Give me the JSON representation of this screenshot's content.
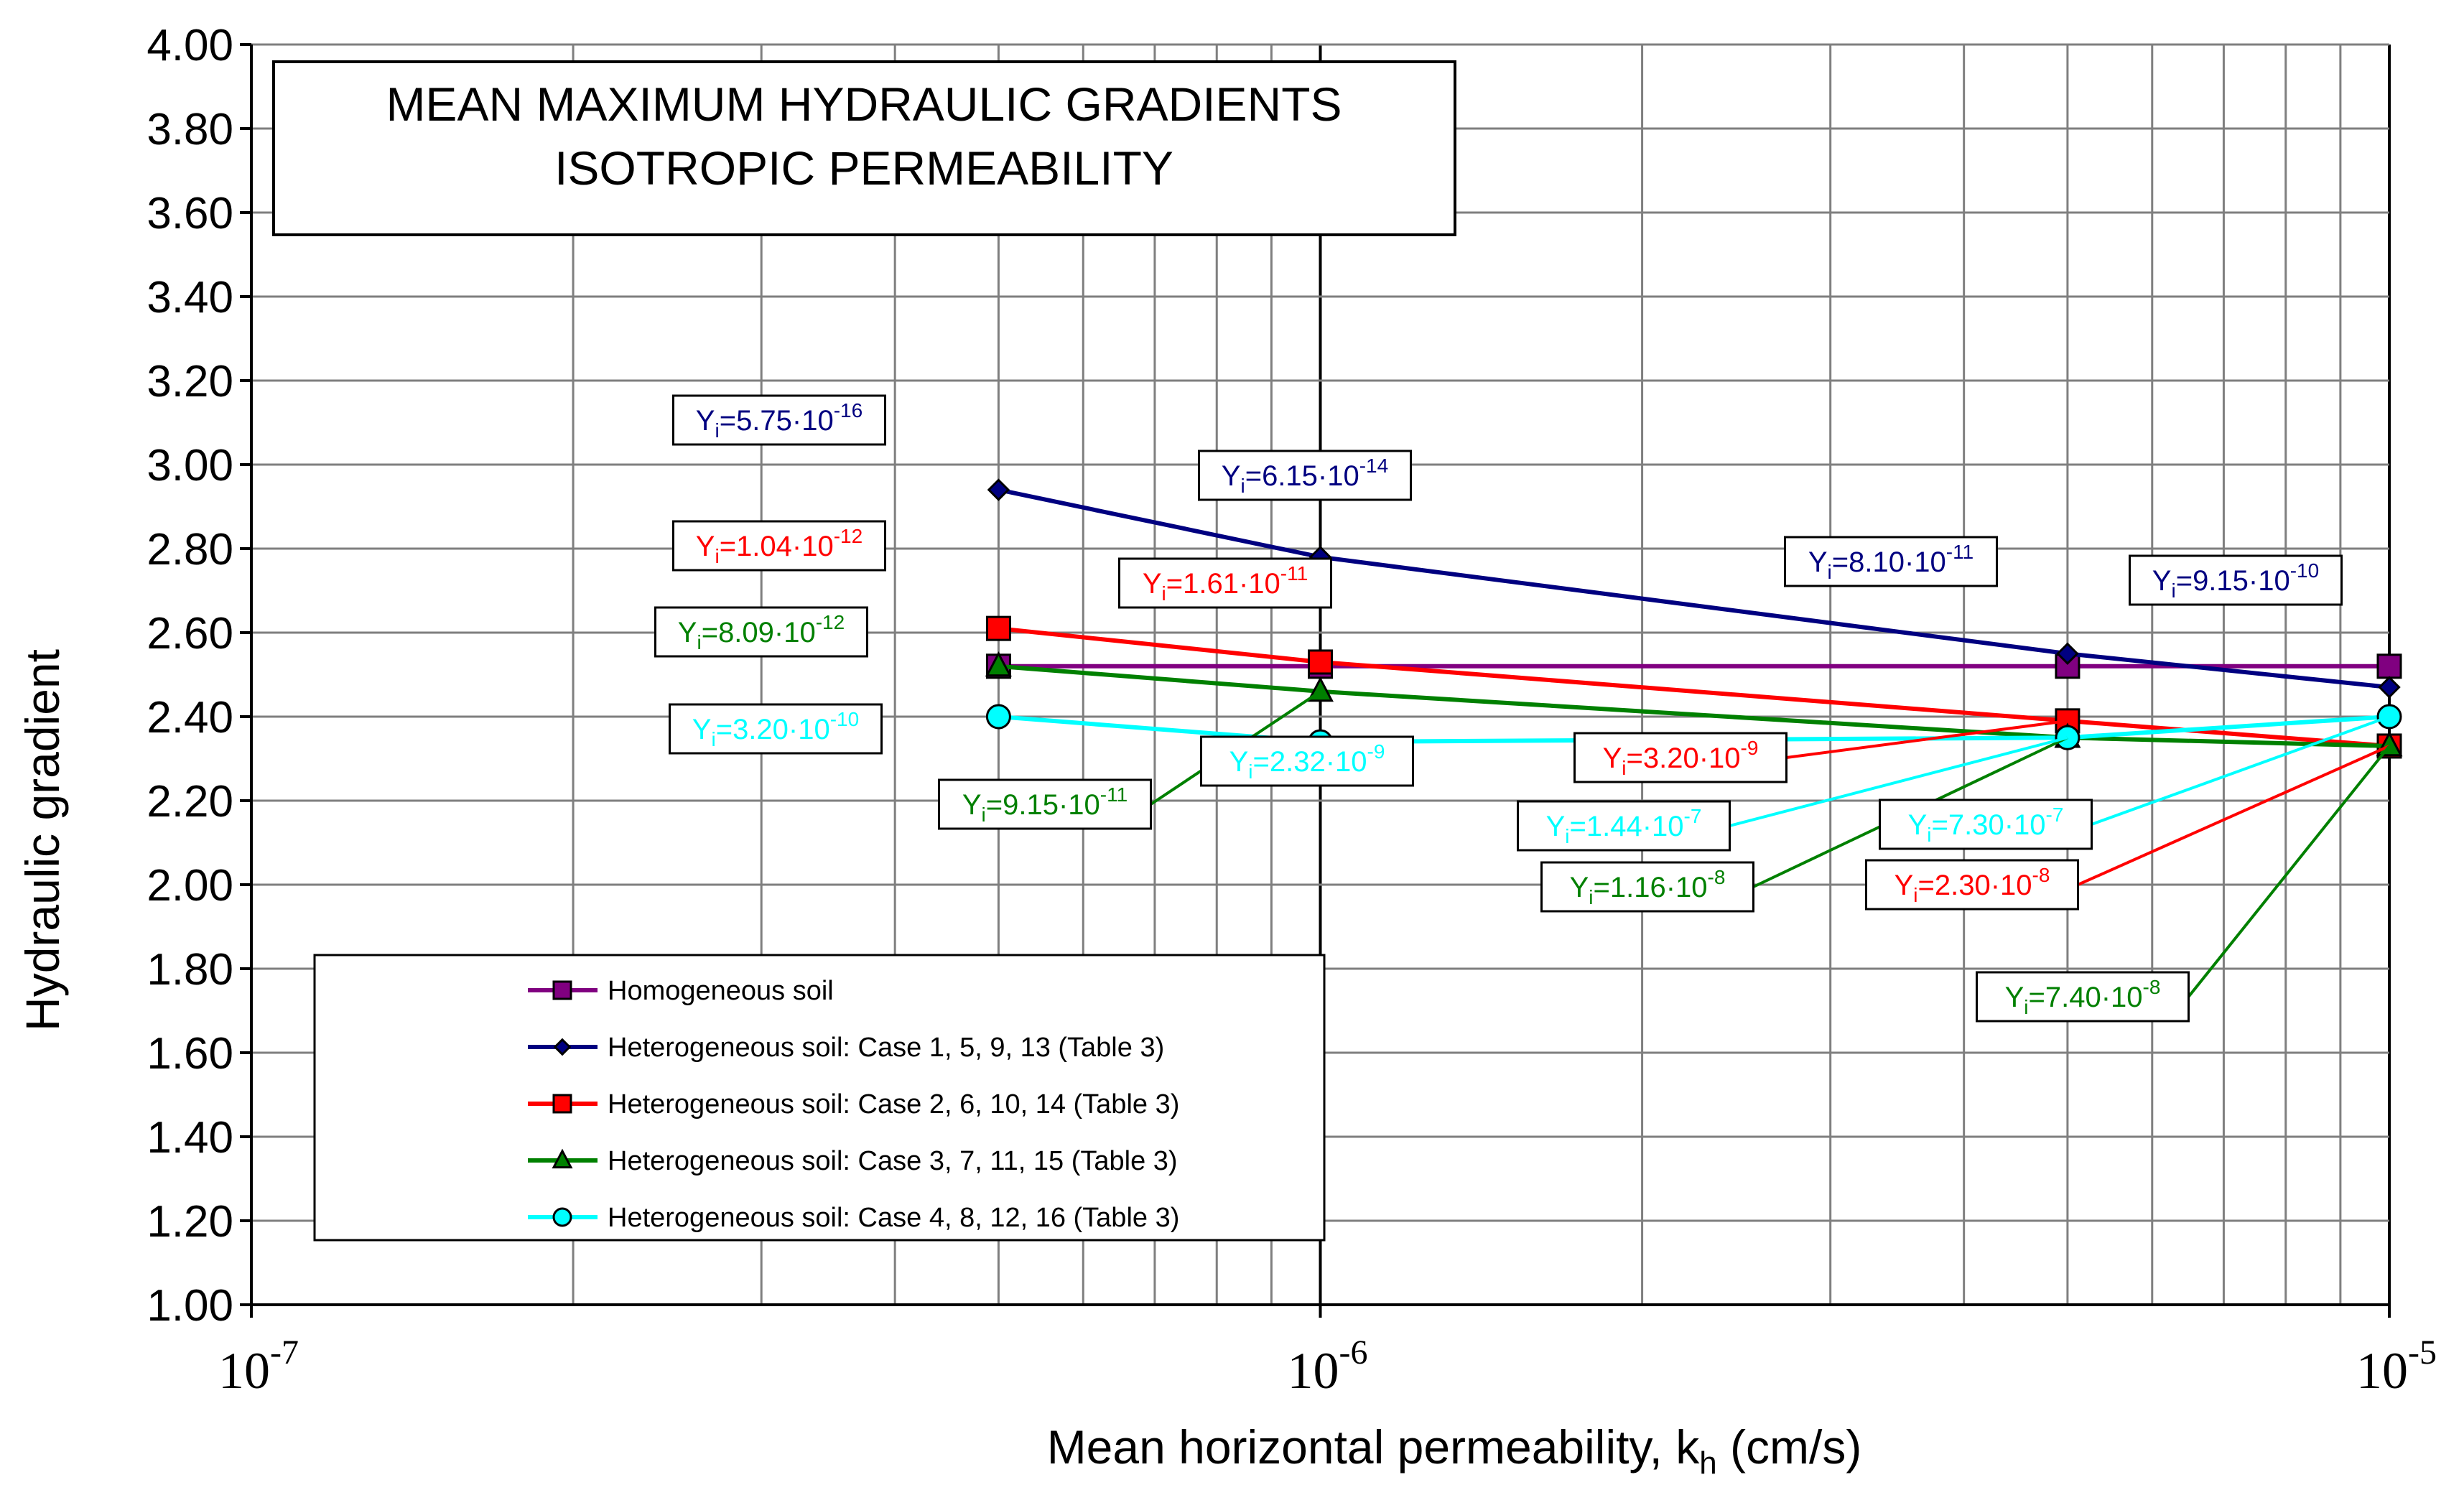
{
  "chart_data": {
    "type": "line",
    "title": [
      "MEAN MAXIMUM HYDRAULIC GRADIENTS",
      "ISOTROPIC PERMEABILITY"
    ],
    "xlabel": "Mean horizontal permeability, k",
    "xlabel_sub": "h",
    "xlabel_unit": " (cm/s)",
    "ylabel": "Hydraulic gradient",
    "x_scale": "log",
    "xlim": [
      1e-07,
      1e-05
    ],
    "ylim": [
      1.0,
      4.0
    ],
    "y_ticks": [
      "1.00",
      "1.20",
      "1.40",
      "1.60",
      "1.80",
      "2.00",
      "2.20",
      "2.40",
      "2.60",
      "2.80",
      "3.00",
      "3.20",
      "3.40",
      "3.60",
      "3.80",
      "4.00"
    ],
    "x_ticks": [
      {
        "value": 1e-07,
        "base": "10",
        "exp": "-7"
      },
      {
        "value": 1e-06,
        "base": "10",
        "exp": "-6"
      },
      {
        "value": 1e-05,
        "base": "10",
        "exp": "-5"
      }
    ],
    "grid": true,
    "legend_position": "bottom-left",
    "series": [
      {
        "name": "Homogeneous soil",
        "color": "#800080",
        "marker": "square",
        "x": [
          5e-07,
          1e-06,
          5e-06,
          1e-05
        ],
        "y": [
          2.52,
          2.52,
          2.52,
          2.52
        ]
      },
      {
        "name": "Heterogeneous soil: Case  1, 5, 9, 13 (Table 3)",
        "color": "#000080",
        "marker": "diamond",
        "x": [
          5e-07,
          1e-06,
          5e-06,
          1e-05
        ],
        "y": [
          2.94,
          2.78,
          2.55,
          2.47
        ]
      },
      {
        "name": "Heterogeneous soil: Case  2, 6, 10, 14 (Table 3)",
        "color": "#ff0000",
        "marker": "square",
        "x": [
          5e-07,
          1e-06,
          5e-06,
          1e-05
        ],
        "y": [
          2.61,
          2.53,
          2.39,
          2.33
        ]
      },
      {
        "name": "Heterogeneous soil: Case  3, 7, 11, 15 (Table 3)",
        "color": "#008000",
        "marker": "triangle",
        "x": [
          5e-07,
          1e-06,
          5e-06,
          1e-05
        ],
        "y": [
          2.52,
          2.46,
          2.35,
          2.33
        ]
      },
      {
        "name": "Heterogeneous soil: Case  4, 8, 12, 16 (Table 3)",
        "color": "#00ffff",
        "marker": "circle",
        "x": [
          5e-07,
          1e-06,
          5e-06,
          1e-05
        ],
        "y": [
          2.4,
          2.34,
          2.35,
          2.4
        ]
      }
    ],
    "annotations": [
      {
        "mant": "5.75",
        "exp": "-16",
        "color": "#000080",
        "series": 1,
        "point": 0,
        "leader": false
      },
      {
        "mant": "6.15",
        "exp": "-14",
        "color": "#000080",
        "series": 1,
        "point": 1,
        "leader": false
      },
      {
        "mant": "8.10",
        "exp": "-11",
        "color": "#000080",
        "series": 1,
        "point": 2,
        "leader": false
      },
      {
        "mant": "9.15",
        "exp": "-10",
        "color": "#000080",
        "series": 1,
        "point": 3,
        "leader": false
      },
      {
        "mant": "1.04",
        "exp": "-12",
        "color": "#ff0000",
        "series": 2,
        "point": 0,
        "leader": false
      },
      {
        "mant": "1.61",
        "exp": "-11",
        "color": "#ff0000",
        "series": 2,
        "point": 1,
        "leader": false
      },
      {
        "mant": "3.20",
        "exp": "-9",
        "color": "#ff0000",
        "series": 2,
        "point": 2,
        "leader": true
      },
      {
        "mant": "2.30",
        "exp": "-8",
        "color": "#ff0000",
        "series": 2,
        "point": 3,
        "leader": true
      },
      {
        "mant": "8.09",
        "exp": "-12",
        "color": "#008000",
        "series": 3,
        "point": 0,
        "leader": false
      },
      {
        "mant": "9.15",
        "exp": "-11",
        "color": "#008000",
        "series": 3,
        "point": 1,
        "leader": true
      },
      {
        "mant": "1.16",
        "exp": "-8",
        "color": "#008000",
        "series": 3,
        "point": 2,
        "leader": true
      },
      {
        "mant": "7.40",
        "exp": "-8",
        "color": "#008000",
        "series": 3,
        "point": 3,
        "leader": true
      },
      {
        "mant": "3.20",
        "exp": "-10",
        "color": "#00ffff",
        "series": 4,
        "point": 0,
        "leader": false
      },
      {
        "mant": "2.32",
        "exp": "-9",
        "color": "#00ffff",
        "series": 4,
        "point": 1,
        "leader": false
      },
      {
        "mant": "1.44",
        "exp": "-7",
        "color": "#00ffff",
        "series": 4,
        "point": 2,
        "leader": true
      },
      {
        "mant": "7.30",
        "exp": "-7",
        "color": "#00ffff",
        "series": 4,
        "point": 3,
        "leader": true
      }
    ],
    "annotation_prefix": "Y",
    "annotation_prefix_sub": "i",
    "annotation_eq": "=",
    "annotation_times": "·10"
  }
}
